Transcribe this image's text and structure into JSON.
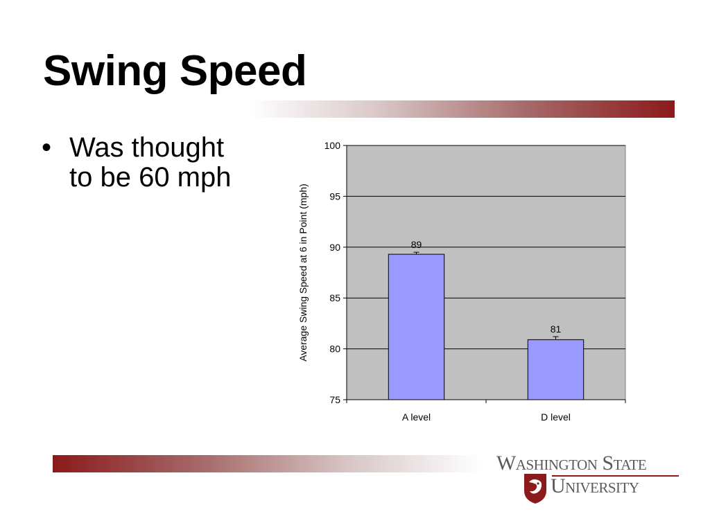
{
  "slide": {
    "title": "Swing Speed",
    "bullet_dot": "•",
    "bullet": "Was thought to be 60 mph"
  },
  "logo": {
    "line1": "Washington State",
    "line2": "University",
    "icon": "cougar-seal-icon"
  },
  "colors": {
    "bar_fill": "#9999ff",
    "plot_bg": "#c0c0c0",
    "accent": "#8b1a1a"
  },
  "chart_data": {
    "type": "bar",
    "categories": [
      "A level",
      "D level"
    ],
    "values": [
      89.3,
      80.9
    ],
    "data_labels": [
      "89",
      "81"
    ],
    "error": [
      0.2,
      0.3
    ],
    "title": "",
    "xlabel": "",
    "ylabel": "Average Swing Speed at 6 in Point (mph)",
    "ylim": [
      75,
      100
    ],
    "yticks": [
      75,
      80,
      85,
      90,
      95,
      100
    ],
    "grid": true,
    "legend": "none"
  }
}
